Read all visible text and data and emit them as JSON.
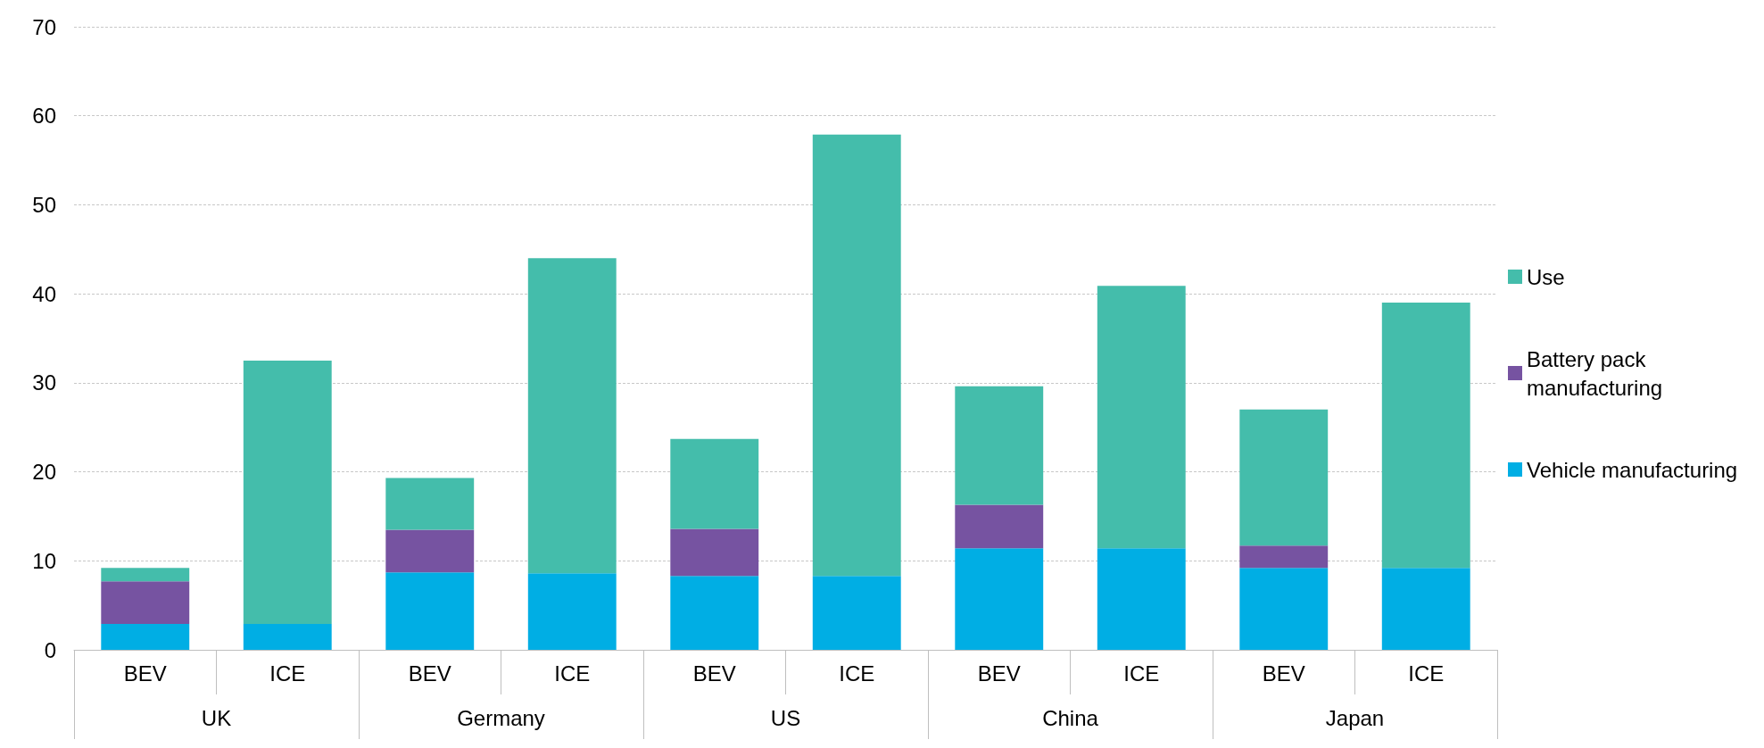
{
  "chart_data": {
    "type": "bar",
    "stacked": true,
    "categories": [
      "BEV",
      "ICE",
      "BEV",
      "ICE",
      "BEV",
      "ICE",
      "BEV",
      "ICE",
      "BEV",
      "ICE"
    ],
    "annotations": [
      "UK",
      "Germany",
      "US",
      "China",
      "Japan"
    ],
    "series": [
      {
        "name": "Vehicle manufacturing",
        "color": "#00aee4",
        "values": [
          2.9,
          2.9,
          8.7,
          8.6,
          8.3,
          8.3,
          11.4,
          11.4,
          9.2,
          9.2
        ]
      },
      {
        "name": "Battery pack manufacturing",
        "color": "#7653a1",
        "values": [
          4.8,
          0,
          4.8,
          0,
          5.3,
          0,
          4.9,
          0,
          2.5,
          0
        ]
      },
      {
        "name": "Use",
        "color": "#44bdab",
        "values": [
          1.5,
          29.6,
          5.8,
          35.4,
          10.1,
          49.6,
          13.3,
          29.5,
          15.3,
          29.8
        ]
      }
    ],
    "ylim": [
      0,
      70
    ],
    "yticks": [
      0,
      10,
      20,
      30,
      40,
      50,
      60,
      70
    ],
    "grid": "y",
    "legend": "right"
  }
}
